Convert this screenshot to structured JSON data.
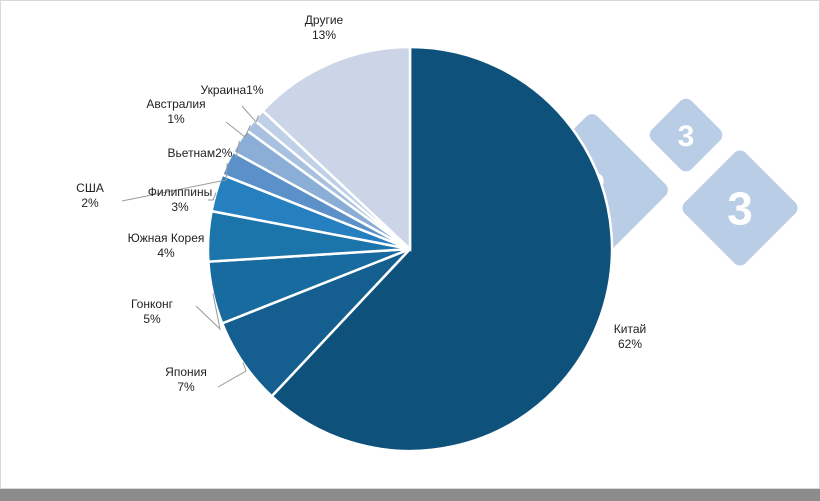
{
  "chart_data": {
    "type": "pie",
    "title": "",
    "categories": [
      "Китай",
      "Япония",
      "Гонконг",
      "Южная Корея",
      "Филиппины",
      "США",
      "Вьетнам",
      "Австралия",
      "Украина",
      "Другие"
    ],
    "values": [
      62,
      7,
      5,
      4,
      3,
      2,
      2,
      1,
      1,
      13
    ],
    "value_labels": [
      "62%",
      "7%",
      "5%",
      "4%",
      "3%",
      "2%",
      "2%",
      "1%",
      "1%",
      "13%"
    ],
    "colors": [
      "#0e527b",
      "#145f8f",
      "#176b9f",
      "#1b74aa",
      "#2680c0",
      "#5b90c8",
      "#8aaed6",
      "#a9c1e0",
      "#bfd0e8",
      "#cbd5e7"
    ],
    "start_angle_deg": 0,
    "direction": "clockwise",
    "legend": "none"
  },
  "watermark": {
    "glyph": "3",
    "color": "#b9cde6"
  }
}
